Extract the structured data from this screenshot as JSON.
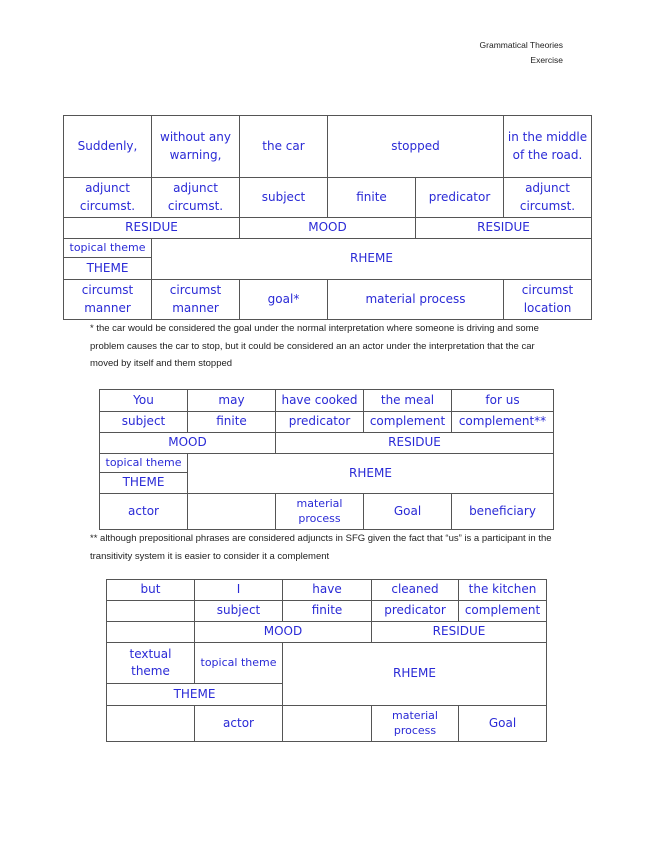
{
  "header": {
    "title": "Grammatical Theories",
    "subtitle": "Exercise"
  },
  "t1": {
    "row1": [
      "Suddenly,",
      "without any warning,",
      "the car",
      "stopped",
      "in the middle of the road."
    ],
    "row2": [
      "adjunct circumst.",
      "adjunct circumst.",
      "subject",
      "finite",
      "predicator",
      "adjunct circumst."
    ],
    "row3": [
      "RESIDUE",
      "MOOD",
      "RESIDUE"
    ],
    "row4": [
      "topical theme",
      "THEME",
      "RHEME"
    ],
    "row5": [
      "circumst manner",
      "circumst manner",
      "goal*",
      "material process",
      "circumst location"
    ],
    "note": "* the car would be considered the goal under the normal interpretation where someone is driving and some problem causes the car to stop, but it could be considered an an actor under the interpretation that the car moved by itself and them stopped"
  },
  "t2": {
    "row1": [
      "You",
      "may",
      "have cooked",
      "the meal",
      "for us"
    ],
    "row2": [
      "subject",
      "finite",
      "predicator",
      "complement",
      "complement**"
    ],
    "row3": [
      "MOOD",
      "RESIDUE"
    ],
    "row4": [
      "topical theme",
      "THEME",
      "RHEME"
    ],
    "row5": [
      "actor",
      "material process",
      "Goal",
      "beneficiary"
    ],
    "note": "** although prepositional phrases are considered adjuncts in SFG given the fact that “us” is a participant in the transitivity system it is easier to consider it a complement"
  },
  "t3": {
    "row1": [
      "but",
      "I",
      "have",
      "cleaned",
      "the kitchen"
    ],
    "row2": [
      "subject",
      "finite",
      "predicator",
      "complement"
    ],
    "row3": [
      "MOOD",
      "RESIDUE"
    ],
    "row4": [
      "textual theme",
      "topical theme",
      "RHEME",
      "THEME"
    ],
    "row5": [
      "actor",
      "material process",
      "Goal"
    ]
  }
}
